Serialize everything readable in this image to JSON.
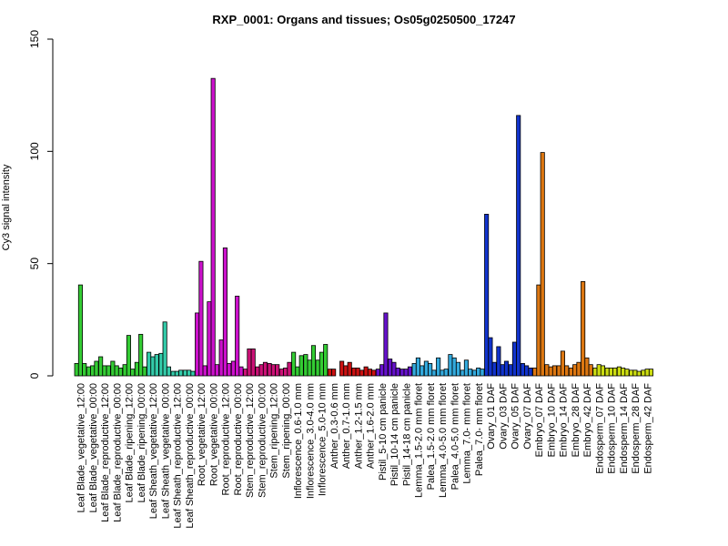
{
  "chart_data": {
    "type": "bar",
    "title": "RXP_0001: Organs and tissues; Os05g0250500_17247",
    "xlabel": "",
    "ylabel": "Cy3 signal intensity",
    "ylim": [
      0,
      150
    ],
    "yticks": [
      0,
      50,
      100,
      150
    ],
    "grid": false,
    "legend": "none",
    "groups": [
      {
        "label": "Leaf Blade_vegetative_12:00",
        "color": "#33cc33",
        "values": [
          5.5,
          40.5,
          5.5
        ]
      },
      {
        "label": "Leaf Blade_vegetative_00:00",
        "color": "#33cc33",
        "values": [
          4,
          4.5,
          6.5
        ]
      },
      {
        "label": "Leaf Blade_reproductive_12:00",
        "color": "#33cc33",
        "values": [
          8.5,
          4.5,
          4.5
        ]
      },
      {
        "label": "Leaf Blade_reproductive_00:00",
        "color": "#33cc33",
        "values": [
          6.5,
          4.5,
          3.5
        ]
      },
      {
        "label": "Leaf Blade_ripening_12:00",
        "color": "#33cc33",
        "values": [
          5,
          18,
          3
        ]
      },
      {
        "label": "Leaf Blade_ripening_00:00",
        "color": "#33cc33",
        "values": [
          6,
          18.5,
          4
        ]
      },
      {
        "label": "Leaf Sheath_vegetative_12:00",
        "color": "#33ccaa",
        "values": [
          10.5,
          8.5,
          9.5
        ]
      },
      {
        "label": "Leaf Sheath_vegetative_00:00",
        "color": "#33ccaa",
        "values": [
          10,
          24,
          4
        ]
      },
      {
        "label": "Leaf Sheath_reproductive_12:00",
        "color": "#33ccaa",
        "values": [
          2,
          2,
          2.5
        ]
      },
      {
        "label": "Leaf Sheath_reproductive_00:00",
        "color": "#33ccaa",
        "values": [
          2.5,
          2.5,
          2
        ]
      },
      {
        "label": "Root_vegetative_12:00",
        "color": "#cc11cc",
        "values": [
          28,
          51,
          4.5
        ]
      },
      {
        "label": "Root_vegetative_00:00",
        "color": "#cc11cc",
        "values": [
          33,
          132.5,
          5
        ]
      },
      {
        "label": "Root_reproductive_12:00",
        "color": "#cc11cc",
        "values": [
          16,
          57,
          5.5
        ]
      },
      {
        "label": "Root_reproductive_00:00",
        "color": "#cc11cc",
        "values": [
          6.5,
          35.5,
          4
        ]
      },
      {
        "label": "Stem_reproductive_12:00",
        "color": "#cc1177",
        "values": [
          3,
          12,
          12
        ]
      },
      {
        "label": "Stem_reproductive_00:00",
        "color": "#cc1177",
        "values": [
          4,
          5,
          6
        ]
      },
      {
        "label": "Stem_ripening_12:00",
        "color": "#cc1177",
        "values": [
          5.5,
          5,
          5
        ]
      },
      {
        "label": "Stem_ripening_00:00",
        "color": "#cc1177",
        "values": [
          3,
          3.5,
          6
        ]
      },
      {
        "label": "Inflorescence_0.6-1.0 mm",
        "color": "#33cc33",
        "values": [
          10.5,
          4,
          9
        ]
      },
      {
        "label": "Inflorescence_3.0-4.0 mm",
        "color": "#33cc33",
        "values": [
          9.5,
          7,
          13.5
        ]
      },
      {
        "label": "Inflorescence_5.0-10 mm",
        "color": "#33cc33",
        "values": [
          7,
          10.5,
          14
        ]
      },
      {
        "label": "Anther_0.3-0.6 mm",
        "color": "#cc1111",
        "values": [
          3,
          3
        ]
      },
      {
        "label": "Anther_0.7-1.0 mm",
        "color": "#cc1111",
        "values": [
          6.5,
          4.5,
          6
        ]
      },
      {
        "label": "Anther_1.2-1.5 mm",
        "color": "#cc1111",
        "values": [
          3.5,
          3.5,
          2.5
        ]
      },
      {
        "label": "Anther_1.6-2.0 mm",
        "color": "#cc1111",
        "values": [
          4,
          3,
          2.5
        ]
      },
      {
        "label": "Pistil_5-10 cm panicle",
        "color": "#6611cc",
        "values": [
          3,
          5,
          28
        ]
      },
      {
        "label": "Pistil_10-14 cm panicle",
        "color": "#6611cc",
        "values": [
          7.5,
          6,
          3.5
        ]
      },
      {
        "label": "Pistil_14-18 cm panicle",
        "color": "#6611cc",
        "values": [
          3,
          3,
          4
        ]
      },
      {
        "label": "Lemma_1.5-2.0 mm floret",
        "color": "#33aadd",
        "values": [
          5.5,
          8,
          4.5
        ]
      },
      {
        "label": "Palea_1.5-2.0 mm floret",
        "color": "#33aadd",
        "values": [
          6.5,
          5.5,
          2.5
        ]
      },
      {
        "label": "Lemma_4.0-5.0 mm floret",
        "color": "#33aadd",
        "values": [
          8,
          2.5,
          3
        ]
      },
      {
        "label": "Palea_4.0-5.0 mm floret",
        "color": "#33aadd",
        "values": [
          9.5,
          8,
          6
        ]
      },
      {
        "label": "Lemma_7.0- mm floret",
        "color": "#33aadd",
        "values": [
          2.5,
          7,
          3
        ]
      },
      {
        "label": "Palea_7.0- mm floret",
        "color": "#33aadd",
        "values": [
          2.5,
          3.5,
          3
        ]
      },
      {
        "label": "Ovary_01 DAF",
        "color": "#1133cc",
        "values": [
          72,
          17,
          6
        ]
      },
      {
        "label": "Ovary_03 DAF",
        "color": "#1133cc",
        "values": [
          13,
          5,
          6.5
        ]
      },
      {
        "label": "Ovary_05 DAF",
        "color": "#1133cc",
        "values": [
          5,
          15,
          116
        ]
      },
      {
        "label": "Ovary_07 DAF",
        "color": "#1133cc",
        "values": [
          5.5,
          4.5,
          3.5
        ]
      },
      {
        "label": "Embryo_07 DAF",
        "color": "#dd7711",
        "values": [
          3.5,
          40.5,
          99.5
        ]
      },
      {
        "label": "Embryo_10 DAF",
        "color": "#dd7711",
        "values": [
          5,
          4,
          4.5
        ]
      },
      {
        "label": "Embryo_14 DAF",
        "color": "#dd7711",
        "values": [
          4.5,
          11,
          4.5
        ]
      },
      {
        "label": "Embryo_28 DAF",
        "color": "#dd7711",
        "values": [
          3.5,
          5,
          6
        ]
      },
      {
        "label": "Embryo_42 DAF",
        "color": "#dd7711",
        "values": [
          42,
          8,
          5
        ]
      },
      {
        "label": "Endosperm_07 DAF",
        "color": "#ccdd11",
        "values": [
          3.5,
          5,
          4.5
        ]
      },
      {
        "label": "Endosperm_10 DAF",
        "color": "#ccdd11",
        "values": [
          3.5,
          3.5,
          3.5
        ]
      },
      {
        "label": "Endosperm_14 DAF",
        "color": "#ccdd11",
        "values": [
          4,
          3.5,
          3
        ]
      },
      {
        "label": "Endosperm_28 DAF",
        "color": "#ccdd11",
        "values": [
          2.5,
          2.5,
          2
        ]
      },
      {
        "label": "Endosperm_42 DAF",
        "color": "#ccdd11",
        "values": [
          2.5,
          3,
          3
        ]
      }
    ]
  }
}
